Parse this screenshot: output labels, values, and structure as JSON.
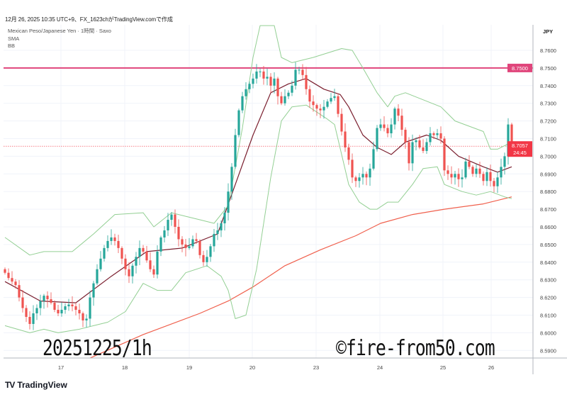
{
  "header": {
    "created_line": "12月 26, 2025 10:35 UTC+9、FX_1623chがTradingView.comで作成"
  },
  "legend": {
    "symbol": "Mexican Peso/Japanese Yen · 1時間 · Saxo",
    "indicator_1": "SMA",
    "indicator_2": "BB"
  },
  "watermark": {
    "left": "20251225/1h",
    "right": "©fire-from50.com"
  },
  "footer": {
    "logo_mark": "TV",
    "logo_text": "TradingView"
  },
  "colors": {
    "up": "#26a69a",
    "down": "#ef5350",
    "sma": "#7a1e2e",
    "long_sma": "#f0604d",
    "bb": "#93cf93",
    "hline": "#e0457b",
    "last_price": "#f23645"
  },
  "chart_data": {
    "type": "candlestick",
    "title": "Mexican Peso/Japanese Yen · 1時間 · Saxo",
    "currency_label": "JPY",
    "ylim": [
      8.585,
      8.778
    ],
    "grid": true,
    "y_ticks": [
      "8.7600",
      "8.7500",
      "8.7400",
      "8.7300",
      "8.7200",
      "8.7100",
      "8.7000",
      "8.6900",
      "8.6800",
      "8.6700",
      "8.6600",
      "8.6500",
      "8.6400",
      "8.6300",
      "8.6200",
      "8.6100",
      "8.6000",
      "8.5900"
    ],
    "x_ticks": [
      {
        "label": "17",
        "bar": 15.8
      },
      {
        "label": "18",
        "bar": 33.8
      },
      {
        "label": "19",
        "bar": 52
      },
      {
        "label": "20",
        "bar": 69.8
      },
      {
        "label": "23",
        "bar": 87.8
      },
      {
        "label": "24",
        "bar": 105.8
      },
      {
        "label": "25",
        "bar": 123.6
      },
      {
        "label": "26",
        "bar": 137.2
      }
    ],
    "closes": [
      8.634,
      8.631,
      8.629,
      8.627,
      8.62,
      8.614,
      8.609,
      8.605,
      8.611,
      8.614,
      8.618,
      8.621,
      8.619,
      8.617,
      8.613,
      8.611,
      8.613,
      8.615,
      8.616,
      8.615,
      8.613,
      8.611,
      8.607,
      8.608,
      8.62,
      8.628,
      8.636,
      8.642,
      8.648,
      8.652,
      8.654,
      8.652,
      8.648,
      8.642,
      8.636,
      8.632,
      8.638,
      8.643,
      8.648,
      8.646,
      8.641,
      8.636,
      8.633,
      8.646,
      8.654,
      8.658,
      8.664,
      8.667,
      8.66,
      8.653,
      8.65,
      8.648,
      8.649,
      8.653,
      8.652,
      8.644,
      8.64,
      8.643,
      8.649,
      8.656,
      8.658,
      8.662,
      8.668,
      8.68,
      8.694,
      8.712,
      8.726,
      8.734,
      8.738,
      8.741,
      8.744,
      8.748,
      8.748,
      8.744,
      8.745,
      8.74,
      8.744,
      8.734,
      8.73,
      8.734,
      8.736,
      8.74,
      8.749,
      8.749,
      8.746,
      8.738,
      8.731,
      8.729,
      8.727,
      8.726,
      8.728,
      8.731,
      8.733,
      8.734,
      8.724,
      8.714,
      8.705,
      8.698,
      8.688,
      8.686,
      8.688,
      8.69,
      8.688,
      8.693,
      8.704,
      8.716,
      8.718,
      8.716,
      8.713,
      8.718,
      8.727,
      8.723,
      8.715,
      8.708,
      8.696,
      8.708,
      8.709,
      8.705,
      8.703,
      8.708,
      8.713,
      8.712,
      8.713,
      8.71,
      8.692,
      8.69,
      8.688,
      8.69,
      8.687,
      8.688,
      8.697,
      8.694,
      8.69,
      8.693,
      8.69,
      8.686,
      8.691,
      8.686,
      8.683,
      8.688,
      8.694,
      8.7,
      8.718,
      8.7057
    ],
    "series": [
      {
        "name": "SMA",
        "points": [
          [
            0,
            8.629
          ],
          [
            10,
            8.618
          ],
          [
            20,
            8.617
          ],
          [
            30,
            8.632
          ],
          [
            40,
            8.646
          ],
          [
            50,
            8.648
          ],
          [
            60,
            8.656
          ],
          [
            65,
            8.684
          ],
          [
            70,
            8.712
          ],
          [
            75,
            8.736
          ],
          [
            80,
            8.741
          ],
          [
            85,
            8.744
          ],
          [
            90,
            8.738
          ],
          [
            94.6,
            8.735
          ],
          [
            97,
            8.728
          ],
          [
            101,
            8.712
          ],
          [
            105,
            8.705
          ],
          [
            109,
            8.701
          ],
          [
            113,
            8.708
          ],
          [
            119,
            8.712
          ],
          [
            123,
            8.709
          ],
          [
            128,
            8.7
          ],
          [
            135,
            8.694
          ],
          [
            139,
            8.691
          ],
          [
            143,
            8.694
          ]
        ]
      },
      {
        "points": [
          [
            21,
            8.583
          ],
          [
            39,
            8.599
          ],
          [
            55,
            8.611
          ],
          [
            63,
            8.618
          ],
          [
            70,
            8.626
          ],
          [
            79,
            8.638
          ],
          [
            89,
            8.647
          ],
          [
            99,
            8.655
          ],
          [
            106,
            8.662
          ],
          [
            115,
            8.667
          ],
          [
            124,
            8.67
          ],
          [
            135,
            8.673
          ],
          [
            143,
            8.677
          ]
        ]
      },
      {
        "name": "BB upper",
        "points": [
          [
            0,
            8.654
          ],
          [
            7,
            8.644
          ],
          [
            11,
            8.646
          ],
          [
            19,
            8.646
          ],
          [
            25,
            8.656
          ],
          [
            31,
            8.667
          ],
          [
            39,
            8.668
          ],
          [
            42,
            8.66
          ],
          [
            47,
            8.668
          ],
          [
            51,
            8.666
          ],
          [
            55,
            8.664
          ],
          [
            59,
            8.662
          ],
          [
            63,
            8.672
          ],
          [
            67,
            8.716
          ],
          [
            70,
            8.756
          ],
          [
            72,
            8.774
          ],
          [
            76,
            8.774
          ],
          [
            78,
            8.756
          ],
          [
            81,
            8.753
          ],
          [
            87,
            8.756
          ],
          [
            95,
            8.761
          ],
          [
            98,
            8.76
          ],
          [
            101,
            8.75
          ],
          [
            105,
            8.736
          ],
          [
            108,
            8.728
          ],
          [
            110,
            8.734
          ],
          [
            113,
            8.736
          ],
          [
            123,
            8.728
          ],
          [
            127,
            8.72
          ],
          [
            135,
            8.714
          ],
          [
            137,
            8.704
          ],
          [
            139,
            8.704
          ],
          [
            143,
            8.708
          ]
        ]
      },
      {
        "name": "BB lower",
        "points": [
          [
            0,
            8.604
          ],
          [
            7,
            8.6
          ],
          [
            11,
            8.602
          ],
          [
            15,
            8.6
          ],
          [
            21,
            8.602
          ],
          [
            25,
            8.604
          ],
          [
            29,
            8.606
          ],
          [
            34,
            8.612
          ],
          [
            39,
            8.628
          ],
          [
            43,
            8.624
          ],
          [
            47,
            8.624
          ],
          [
            51,
            8.634
          ],
          [
            57,
            8.638
          ],
          [
            61,
            8.632
          ],
          [
            63,
            8.624
          ],
          [
            65,
            8.608
          ],
          [
            68,
            8.61
          ],
          [
            71,
            8.636
          ],
          [
            75,
            8.688
          ],
          [
            78,
            8.72
          ],
          [
            81,
            8.728
          ],
          [
            85,
            8.729
          ],
          [
            91,
            8.721
          ],
          [
            93,
            8.718
          ],
          [
            97,
            8.684
          ],
          [
            100,
            8.674
          ],
          [
            103,
            8.67
          ],
          [
            105,
            8.67
          ],
          [
            108,
            8.674
          ],
          [
            111,
            8.674
          ],
          [
            115,
            8.684
          ],
          [
            118,
            8.693
          ],
          [
            122,
            8.694
          ],
          [
            124,
            8.684
          ],
          [
            129,
            8.68
          ],
          [
            133,
            8.678
          ],
          [
            137,
            8.68
          ],
          [
            141,
            8.677
          ],
          [
            143,
            8.676
          ]
        ]
      }
    ],
    "horizontal_line": {
      "price": 8.75,
      "label": "8.7500"
    },
    "last_price": {
      "price": 8.7057,
      "label": "8.7057",
      "countdown": "24:45"
    }
  }
}
